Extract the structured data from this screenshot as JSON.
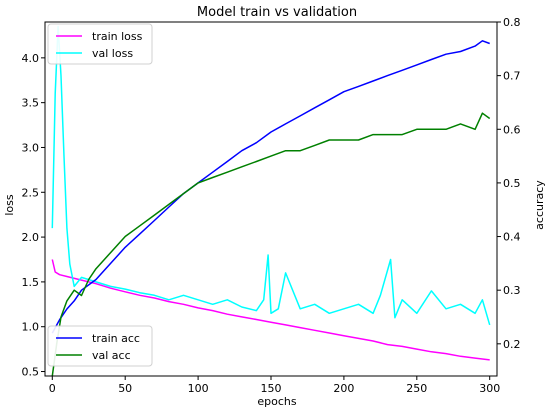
{
  "chart_data": {
    "type": "line",
    "title": "Model train vs validation",
    "xlabel": "epochs",
    "ylabel_left": "loss",
    "ylabel_right": "accuracy",
    "xlim": [
      -5,
      305
    ],
    "ylim_left": [
      0.45,
      4.4
    ],
    "ylim_right": [
      0.14,
      0.8
    ],
    "x_ticks": [
      0,
      50,
      100,
      150,
      200,
      250,
      300
    ],
    "y_left_ticks": [
      0.5,
      1.0,
      1.5,
      2.0,
      2.5,
      3.0,
      3.5,
      4.0
    ],
    "y_right_ticks": [
      0.2,
      0.3,
      0.4,
      0.5,
      0.6,
      0.7,
      0.8
    ],
    "legend_left": {
      "placement": "top-left",
      "entries": [
        "train loss",
        "val loss"
      ]
    },
    "legend_right": {
      "placement": "bottom-left",
      "entries": [
        "train acc",
        "val acc"
      ]
    },
    "colors": {
      "train_loss": "#ff00ff",
      "val_loss": "#00ffff",
      "train_acc": "#0000ff",
      "val_acc": "#008000"
    },
    "series": [
      {
        "name": "train loss",
        "axis": "left",
        "x": [
          0,
          2,
          5,
          10,
          20,
          30,
          40,
          50,
          60,
          70,
          80,
          90,
          100,
          110,
          120,
          130,
          140,
          150,
          160,
          170,
          180,
          190,
          200,
          210,
          220,
          230,
          240,
          250,
          260,
          270,
          280,
          290,
          300
        ],
        "values": [
          1.75,
          1.61,
          1.58,
          1.56,
          1.52,
          1.48,
          1.43,
          1.39,
          1.35,
          1.32,
          1.28,
          1.25,
          1.21,
          1.18,
          1.14,
          1.11,
          1.08,
          1.05,
          1.02,
          0.99,
          0.96,
          0.93,
          0.9,
          0.87,
          0.84,
          0.8,
          0.78,
          0.75,
          0.72,
          0.7,
          0.67,
          0.65,
          0.63
        ]
      },
      {
        "name": "val loss",
        "axis": "left",
        "x": [
          0,
          2,
          4,
          6,
          8,
          10,
          12,
          15,
          20,
          30,
          40,
          50,
          60,
          70,
          80,
          90,
          100,
          110,
          120,
          130,
          140,
          145,
          148,
          150,
          155,
          160,
          170,
          180,
          190,
          200,
          210,
          220,
          225,
          232,
          235,
          240,
          250,
          260,
          270,
          280,
          290,
          295,
          300
        ],
        "values": [
          2.1,
          3.6,
          4.35,
          3.8,
          2.9,
          2.1,
          1.7,
          1.45,
          1.55,
          1.5,
          1.45,
          1.42,
          1.38,
          1.35,
          1.3,
          1.35,
          1.3,
          1.25,
          1.3,
          1.22,
          1.18,
          1.3,
          1.8,
          1.15,
          1.2,
          1.6,
          1.2,
          1.25,
          1.15,
          1.2,
          1.25,
          1.15,
          1.35,
          1.75,
          1.1,
          1.3,
          1.15,
          1.4,
          1.2,
          1.25,
          1.15,
          1.3,
          1.02
        ]
      },
      {
        "name": "train acc",
        "axis": "right",
        "x": [
          0,
          5,
          10,
          15,
          20,
          30,
          40,
          50,
          60,
          70,
          80,
          90,
          100,
          110,
          120,
          130,
          140,
          150,
          160,
          170,
          180,
          190,
          200,
          210,
          220,
          230,
          240,
          250,
          260,
          270,
          280,
          290,
          295,
          300
        ],
        "values": [
          0.22,
          0.245,
          0.265,
          0.28,
          0.3,
          0.32,
          0.35,
          0.38,
          0.405,
          0.43,
          0.455,
          0.48,
          0.5,
          0.52,
          0.54,
          0.56,
          0.575,
          0.595,
          0.61,
          0.625,
          0.64,
          0.655,
          0.67,
          0.68,
          0.69,
          0.7,
          0.71,
          0.72,
          0.73,
          0.74,
          0.745,
          0.755,
          0.765,
          0.76
        ]
      },
      {
        "name": "val acc",
        "axis": "right",
        "x": [
          0,
          3,
          6,
          10,
          15,
          20,
          25,
          30,
          40,
          50,
          60,
          70,
          80,
          90,
          100,
          110,
          120,
          130,
          140,
          150,
          160,
          170,
          180,
          190,
          200,
          210,
          220,
          230,
          240,
          250,
          260,
          270,
          280,
          290,
          295,
          300
        ],
        "values": [
          0.14,
          0.2,
          0.25,
          0.28,
          0.3,
          0.29,
          0.32,
          0.34,
          0.37,
          0.4,
          0.42,
          0.44,
          0.46,
          0.48,
          0.5,
          0.51,
          0.52,
          0.53,
          0.54,
          0.55,
          0.56,
          0.56,
          0.57,
          0.58,
          0.58,
          0.58,
          0.59,
          0.59,
          0.59,
          0.6,
          0.6,
          0.6,
          0.61,
          0.6,
          0.63,
          0.62
        ]
      }
    ]
  }
}
